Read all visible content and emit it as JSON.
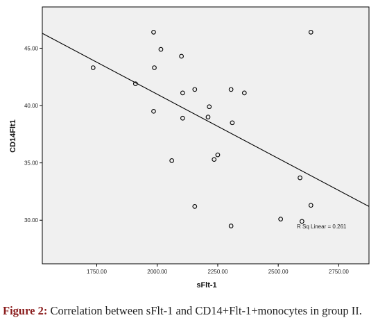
{
  "chart_data": {
    "type": "scatter",
    "xlabel": "sFlt-1",
    "ylabel": "CD14Flt1",
    "xlim": [
      1525,
      2875
    ],
    "ylim": [
      26.2,
      48.6
    ],
    "x_ticks": [
      1750,
      2000,
      2250,
      2500,
      2750
    ],
    "x_tick_labels": [
      "1750.00",
      "2000.00",
      "2250.00",
      "2500.00",
      "2750.00"
    ],
    "y_ticks": [
      30,
      35,
      40,
      45
    ],
    "y_tick_labels": [
      "30.00",
      "35.00",
      "40.00",
      "45.00"
    ],
    "grid": false,
    "background": "#f0f0f0",
    "points": [
      {
        "x": 1735,
        "y": 43.3
      },
      {
        "x": 1910,
        "y": 41.9
      },
      {
        "x": 1985,
        "y": 46.4
      },
      {
        "x": 2015,
        "y": 44.9
      },
      {
        "x": 1988,
        "y": 43.3
      },
      {
        "x": 1985,
        "y": 39.5
      },
      {
        "x": 2100,
        "y": 44.3
      },
      {
        "x": 2105,
        "y": 41.1
      },
      {
        "x": 2105,
        "y": 38.9
      },
      {
        "x": 2060,
        "y": 35.2
      },
      {
        "x": 2155,
        "y": 41.4
      },
      {
        "x": 2215,
        "y": 39.9
      },
      {
        "x": 2210,
        "y": 39.0
      },
      {
        "x": 2235,
        "y": 35.3
      },
      {
        "x": 2250,
        "y": 35.7
      },
      {
        "x": 2305,
        "y": 41.4
      },
      {
        "x": 2310,
        "y": 38.5
      },
      {
        "x": 2360,
        "y": 41.1
      },
      {
        "x": 2155,
        "y": 31.2
      },
      {
        "x": 2305,
        "y": 29.5
      },
      {
        "x": 2510,
        "y": 30.1
      },
      {
        "x": 2590,
        "y": 33.7
      },
      {
        "x": 2598,
        "y": 29.9
      },
      {
        "x": 2635,
        "y": 46.4
      },
      {
        "x": 2635,
        "y": 31.3
      }
    ],
    "fit_line": {
      "x1": 1525,
      "y1": 46.3,
      "x2": 2875,
      "y2": 31.2
    },
    "annotation": "R Sq Linear = 0.261"
  },
  "caption": {
    "label": "Figure 2:",
    "text": " Correlation between sFlt-1 and CD14+Flt-1+monocytes in group II."
  }
}
